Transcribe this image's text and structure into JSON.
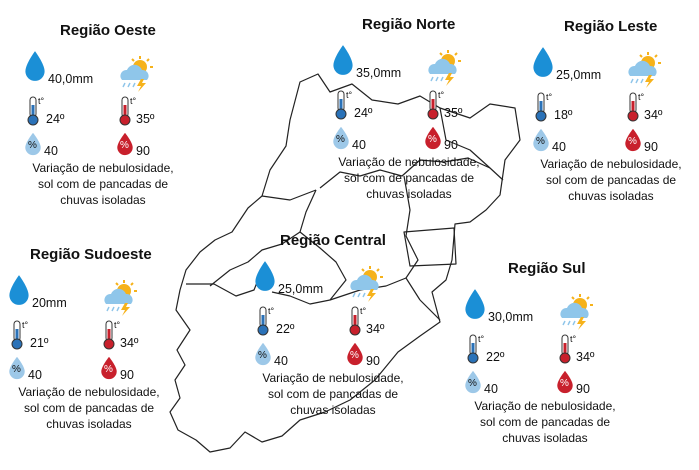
{
  "colors": {
    "water_drop": "#1b8fd6",
    "humidity_min": "#9dc8e8",
    "humidity_max": "#c8202c",
    "thermo_min": "#2a72b8",
    "thermo_max": "#c8202c",
    "sun": "#f6b21a",
    "cloud": "#8fc6ea",
    "lightning": "#f6b21a",
    "map_border": "#222222"
  },
  "icons": [
    "rain-drop-icon",
    "storm-weather-icon",
    "thermometer-min-icon",
    "thermometer-max-icon",
    "humidity-min-icon",
    "humidity-max-icon"
  ],
  "thermometer_label": "t°",
  "humidity_symbol": "%",
  "regions": {
    "oeste": {
      "name": "Região Oeste",
      "rain": "40,0mm",
      "temp_min": "24º",
      "temp_max": "35º",
      "hum_min": "40",
      "hum_max": "90",
      "desc1": "Variação de nebulosidade,",
      "desc2": "sol com de pancadas de",
      "desc3": "chuvas isoladas"
    },
    "norte": {
      "name": "Região Norte",
      "rain": "35,0mm",
      "temp_min": "24º",
      "temp_max": "35º",
      "hum_min": "40",
      "hum_max": "90",
      "desc1": "Variação de nebulosidade,",
      "desc2": "sol com de pancadas de",
      "desc3": "chuvas isoladas"
    },
    "leste": {
      "name": "Região Leste",
      "rain": "25,0mm",
      "temp_min": "18º",
      "temp_max": "34º",
      "hum_min": "40",
      "hum_max": "90",
      "desc1": "Variação de nebulosidade,",
      "desc2": "sol com de pancadas de",
      "desc3": "chuvas isoladas"
    },
    "sudoeste": {
      "name": "Região Sudoeste",
      "rain": "20mm",
      "temp_min": "21º",
      "temp_max": "34º",
      "hum_min": "40",
      "hum_max": "90",
      "desc1": "Variação de nebulosidade,",
      "desc2": "sol com de pancadas de",
      "desc3": "chuvas isoladas"
    },
    "central": {
      "name": "Região Central",
      "rain": "25,0mm",
      "temp_min": "22º",
      "temp_max": "34º",
      "hum_min": "40",
      "hum_max": "90",
      "desc1": "Variação de nebulosidade,",
      "desc2": "sol com de pancadas de",
      "desc3": "chuvas isoladas"
    },
    "sul": {
      "name": "Região Sul",
      "rain": "30,0mm",
      "temp_min": "22º",
      "temp_max": "34º",
      "hum_min": "40",
      "hum_max": "90",
      "desc1": "Variação de nebulosidade,",
      "desc2": "sol com de pancadas de",
      "desc3": "chuvas isoladas"
    }
  }
}
